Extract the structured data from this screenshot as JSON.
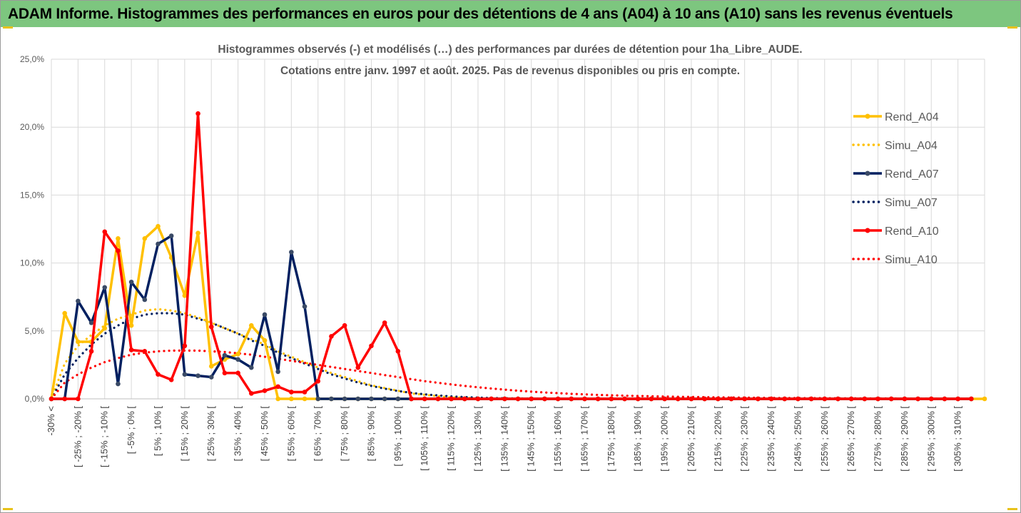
{
  "report_title": "ADAM Informe. Histogrammes des performances en euros pour des détentions de 4 ans (A04) à 10 ans (A10) sans les revenus éventuels",
  "colors": {
    "banner": "#7dc67f",
    "A04": "#ffc000",
    "A07": "#002060",
    "A10": "#ff0000",
    "grid": "#d9d9d9"
  },
  "chart_data": {
    "type": "line",
    "title_line1": "Histogrammes observés (-) et modélisés (…) des performances par durées de détention pour 1ha_Libre_AUDE.",
    "title_line2": "Cotations entre janv. 1997 et août. 2025. Pas de revenus disponibles ou pris en compte.",
    "ylim": [
      0,
      25
    ],
    "y_ticks": [
      "0,0%",
      "5,0%",
      "10,0%",
      "15,0%",
      "20,0%",
      "25,0%"
    ],
    "grid": true,
    "legend_position": "right",
    "x_tick_labels": [
      "-30% <",
      "[ -25% ; -20% [",
      "[ -15% ; -10% [",
      "[ -5% ; 0% [",
      "[ 5% ; 10% [",
      "[ 15% ; 20% [",
      "[ 25% ; 30% [",
      "[ 35% ; 40% [",
      "[ 45% ; 50% [",
      "[ 55% ; 60% [",
      "[ 65% ; 70% [",
      "[ 75% ; 80% [",
      "[ 85% ; 90% [",
      "[ 95% ; 100% [",
      "[ 105% ; 110% [",
      "[ 115% ; 120% [",
      "[ 125% ; 130% [",
      "[ 135% ; 140% [",
      "[ 145% ; 150% [",
      "[ 155% ; 160% [",
      "[ 165% ; 170% [",
      "[ 175% ; 180% [",
      "[ 185% ; 190% [",
      "[ 195% ; 200% [",
      "[ 205% ; 210% [",
      "[ 215% ; 220% [",
      "[ 225% ; 230% [",
      "[ 235% ; 240% [",
      "[ 245% ; 250% [",
      "[ 255% ; 260% [",
      "[ 265% ; 270% [",
      "[ 275% ; 280% [",
      "[ 285% ; 290% [",
      "[ 295% ; 300% [",
      "[ 305% ; 310% ["
    ],
    "series": [
      {
        "name": "Rend_A04",
        "style": "solid",
        "color": "#ffc000",
        "values": [
          0.0,
          6.3,
          4.2,
          4.2,
          5.2,
          11.8,
          5.4,
          11.8,
          12.7,
          10.4,
          7.6,
          12.2,
          2.4,
          2.9,
          3.3,
          5.4,
          4.3,
          0,
          0,
          0,
          0,
          0,
          0,
          0,
          0,
          0,
          0,
          0,
          0,
          0,
          0,
          0,
          0,
          0,
          0,
          0,
          0,
          0,
          0,
          0,
          0,
          0,
          0,
          0,
          0,
          0,
          0,
          0,
          0,
          0,
          0,
          0,
          0,
          0,
          0,
          0,
          0,
          0,
          0,
          0,
          0,
          0,
          0,
          0,
          0,
          0,
          0,
          0,
          0,
          0,
          0
        ]
      },
      {
        "name": "Simu_A04",
        "style": "dotted",
        "color": "#ffc000",
        "values": [
          0.0,
          2.6,
          3.9,
          4.7,
          5.4,
          5.9,
          6.2,
          6.5,
          6.6,
          6.5,
          6.3,
          6.0,
          5.6,
          5.2,
          4.8,
          4.4,
          4.0,
          3.5,
          3.1,
          2.7,
          2.3,
          1.9,
          1.6,
          1.3,
          1.0,
          0.8,
          0.6,
          0.4,
          0.3,
          0.2,
          0.1,
          0.1,
          0,
          0,
          0,
          0,
          0,
          0,
          0,
          0,
          0,
          0,
          0,
          0,
          0,
          0,
          0,
          0,
          0,
          0,
          0,
          0,
          0,
          0,
          0,
          0,
          0,
          0,
          0,
          0,
          0,
          0,
          0,
          0,
          0,
          0,
          0,
          0,
          0,
          0
        ]
      },
      {
        "name": "Rend_A07",
        "style": "solid",
        "color": "#002060",
        "values": [
          0.0,
          0,
          7.2,
          5.6,
          8.2,
          1.1,
          8.6,
          7.3,
          11.4,
          12.0,
          1.8,
          1.7,
          1.6,
          3.2,
          2.9,
          2.3,
          6.2,
          2.0,
          10.8,
          6.8,
          0,
          0,
          0,
          0,
          0,
          0,
          0,
          0,
          0,
          0,
          0,
          0,
          0,
          0,
          0,
          0,
          0,
          0,
          0,
          0,
          0,
          0,
          0,
          0,
          0,
          0,
          0,
          0,
          0,
          0,
          0,
          0,
          0,
          0,
          0,
          0,
          0,
          0,
          0,
          0,
          0,
          0,
          0,
          0,
          0,
          0,
          0,
          0,
          0,
          0
        ]
      },
      {
        "name": "Simu_A07",
        "style": "dotted",
        "color": "#002060",
        "values": [
          0.0,
          1.8,
          3.0,
          4.0,
          4.8,
          5.4,
          5.9,
          6.2,
          6.3,
          6.3,
          6.2,
          5.9,
          5.6,
          5.2,
          4.8,
          4.3,
          3.9,
          3.4,
          3.0,
          2.6,
          2.2,
          1.8,
          1.5,
          1.2,
          0.95,
          0.75,
          0.58,
          0.44,
          0.33,
          0.25,
          0.18,
          0.13,
          0.09,
          0.06,
          0.04,
          0.03,
          0.02,
          0.01,
          0,
          0,
          0,
          0,
          0,
          0,
          0,
          0,
          0,
          0,
          0,
          0,
          0,
          0,
          0,
          0,
          0,
          0,
          0,
          0,
          0,
          0,
          0,
          0,
          0,
          0,
          0,
          0,
          0,
          0,
          0
        ]
      },
      {
        "name": "Rend_A10",
        "style": "solid",
        "color": "#ff0000",
        "values": [
          0.0,
          0,
          0,
          3.5,
          12.3,
          10.9,
          3.6,
          3.5,
          1.8,
          1.4,
          3.9,
          21.0,
          5.3,
          1.9,
          1.9,
          0.4,
          0.6,
          0.9,
          0.5,
          0.5,
          1.3,
          4.6,
          5.4,
          2.3,
          3.9,
          5.6,
          3.5,
          0,
          0,
          0,
          0,
          0,
          0,
          0,
          0,
          0,
          0,
          0,
          0,
          0,
          0,
          0,
          0,
          0,
          0,
          0,
          0,
          0,
          0,
          0,
          0,
          0,
          0,
          0,
          0,
          0,
          0,
          0,
          0,
          0,
          0,
          0,
          0,
          0,
          0,
          0,
          0,
          0,
          0,
          0
        ]
      },
      {
        "name": "Simu_A10",
        "style": "dotted",
        "color": "#ff0000",
        "values": [
          0.0,
          1.2,
          1.8,
          2.3,
          2.7,
          3.0,
          3.25,
          3.4,
          3.5,
          3.55,
          3.55,
          3.55,
          3.5,
          3.45,
          3.35,
          3.25,
          3.1,
          2.95,
          2.8,
          2.65,
          2.5,
          2.35,
          2.2,
          2.05,
          1.9,
          1.75,
          1.6,
          1.45,
          1.3,
          1.18,
          1.06,
          0.95,
          0.85,
          0.76,
          0.68,
          0.6,
          0.53,
          0.47,
          0.42,
          0.37,
          0.33,
          0.29,
          0.26,
          0.23,
          0.21,
          0.19,
          0.17,
          0.15,
          0.14,
          0.12,
          0.11,
          0.1,
          0.09,
          0.08,
          0.07,
          0.06,
          0.06,
          0.05,
          0.05,
          0.04,
          0.04,
          0.03,
          0.03,
          0.03,
          0.02,
          0.02,
          0.02,
          0.01,
          0.01,
          0.01
        ]
      }
    ]
  }
}
